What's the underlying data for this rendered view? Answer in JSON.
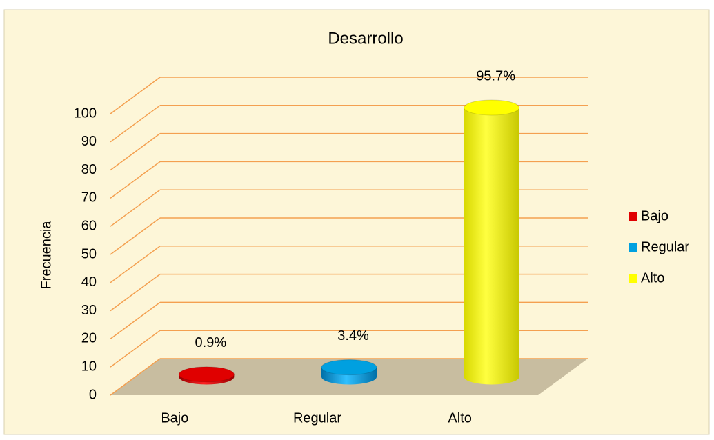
{
  "chart_data": {
    "type": "bar3d",
    "title": "Desarrollo",
    "y_label": "Frecuencia",
    "categories": [
      "Bajo",
      "Regular",
      "Alto"
    ],
    "values": [
      0.9,
      3.4,
      95.7
    ],
    "value_labels": [
      "0.9%",
      "3.4%",
      "95.7%"
    ],
    "colors": [
      "#e00000",
      "#00a0e0",
      "#ffff00"
    ],
    "ylim": [
      0,
      100
    ],
    "yticks": [
      0,
      10,
      20,
      30,
      40,
      50,
      60,
      70,
      80,
      90,
      100
    ],
    "grid": true,
    "legend": "right"
  }
}
